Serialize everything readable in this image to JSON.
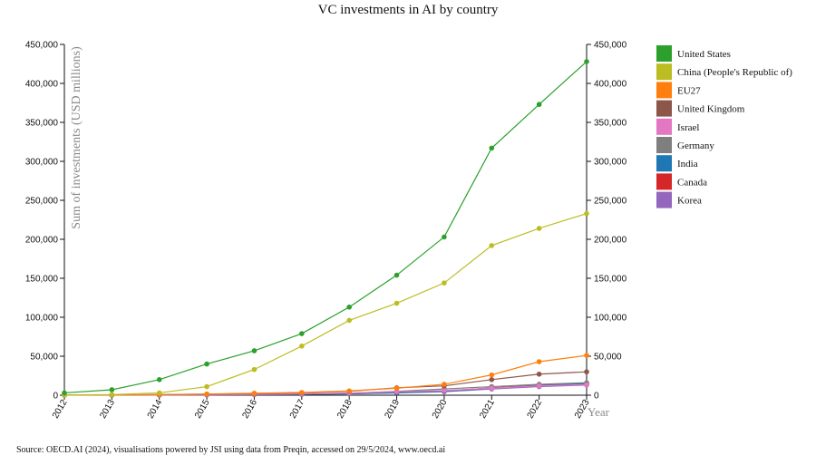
{
  "chart_data": {
    "type": "line",
    "title": "VC investments in AI by country",
    "ylabel": "Sum of investments (USD millions)",
    "xlabel": "Year",
    "x": [
      "2012",
      "2013",
      "2014",
      "2015",
      "2016",
      "2017",
      "2018",
      "2019",
      "2020",
      "2021",
      "2022",
      "2023"
    ],
    "ylim": [
      0,
      450000
    ],
    "yticks": [
      0,
      50000,
      100000,
      150000,
      200000,
      250000,
      300000,
      350000,
      400000,
      450000
    ],
    "ytick_labels": [
      "0",
      "50,000",
      "100,000",
      "150,000",
      "200,000",
      "250,000",
      "300,000",
      "350,000",
      "400,000",
      "450,000"
    ],
    "grid": false,
    "legend_position": "right",
    "series": [
      {
        "name": "United States",
        "color": "#2ca02c",
        "values": [
          3000,
          7000,
          20000,
          40000,
          57000,
          79000,
          113000,
          154000,
          203000,
          317000,
          373000,
          428000
        ]
      },
      {
        "name": "China (People's Republic of)",
        "color": "#bcbd22",
        "values": [
          300,
          800,
          3000,
          11000,
          33000,
          63000,
          96000,
          118000,
          144000,
          192000,
          214000,
          233000
        ]
      },
      {
        "name": "EU27",
        "color": "#ff7f0e",
        "values": [
          200,
          400,
          800,
          1500,
          2500,
          3500,
          5500,
          9000,
          14000,
          26000,
          43000,
          51000
        ]
      },
      {
        "name": "United Kingdom",
        "color": "#8c564b",
        "values": [
          100,
          300,
          700,
          1300,
          2200,
          3200,
          5000,
          9500,
          12000,
          20000,
          27000,
          30000
        ]
      },
      {
        "name": "Israel",
        "color": "#e377c2",
        "values": [
          100,
          200,
          400,
          800,
          1200,
          1800,
          2800,
          4500,
          6000,
          9000,
          12000,
          13500
        ]
      },
      {
        "name": "Germany",
        "color": "#7f7f7f",
        "values": [
          50,
          150,
          300,
          600,
          1000,
          1700,
          2500,
          5000,
          8000,
          11000,
          14000,
          16000
        ]
      },
      {
        "name": "India",
        "color": "#1f77b4",
        "values": [
          50,
          100,
          300,
          500,
          800,
          1200,
          1800,
          3000,
          5000,
          9000,
          12500,
          15000
        ]
      },
      {
        "name": "Canada",
        "color": "#d62728",
        "values": [
          50,
          150,
          300,
          500,
          800,
          1300,
          2000,
          3500,
          5000,
          9500,
          13000,
          15000
        ]
      },
      {
        "name": "Korea",
        "color": "#9467bd",
        "values": [
          50,
          100,
          200,
          400,
          700,
          1100,
          1700,
          3000,
          4500,
          8000,
          11000,
          13000
        ]
      }
    ]
  },
  "footer": {
    "source": "Source: OECD.AI (2024), visualisations powered by JSI using data from Preqin, accessed on 29/5/2024, www.oecd.ai"
  }
}
